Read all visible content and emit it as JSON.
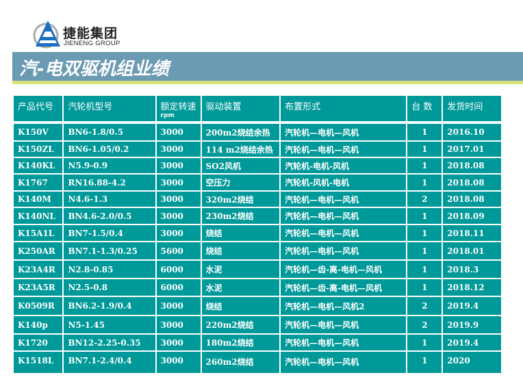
{
  "logo": {
    "cn": "捷能集团",
    "en": "JIENENG GROUP"
  },
  "title": "汽-电双驱机组业绩",
  "colors": {
    "table_bg": "#009999",
    "title_bar": "#6b9ab3",
    "stripe": "#d6e27a"
  },
  "headers": [
    "产品代号",
    "汽轮机型号",
    "额定转速",
    "驱动装置",
    "布置形式",
    "台 数",
    "发货时间"
  ],
  "speed_unit": "rpm",
  "rows": [
    [
      "K150V",
      "BN6-1.8/0.5",
      "3000",
      "200m2烧结余热",
      "汽轮机—电机—风机",
      "1",
      "2016.10"
    ],
    [
      "K150ZL",
      "BN6-1.05/0.2",
      "3000",
      "114 m2烧结余热",
      "汽轮机—电机—风机",
      "1",
      "2017.01"
    ],
    [
      "K140KL",
      "N5.9-0.9",
      "3000",
      "SO2风机",
      "汽轮机-电机-风机",
      "1",
      "2018.08"
    ],
    [
      "K1767",
      "RN16.88-4.2",
      "3000",
      "空压力",
      "汽轮机-风机-电机",
      "1",
      "2018.08"
    ],
    [
      "K140M",
      "N4.6-1.3",
      "3000",
      "320m2烧结",
      "汽轮机—电机—风机",
      "2",
      "2018.08"
    ],
    [
      "K140NL",
      "BN4.6-2.0/0.5",
      "3000",
      "230m2烧结",
      "汽轮机—电机—风机",
      "1",
      "2018.09"
    ],
    [
      "K15A1L",
      "BN7-1.5/0.4",
      "3000",
      "烧结",
      "汽轮机—电机—风机",
      "1",
      "2018.11"
    ],
    [
      "K250AR",
      "BN7.1-1.3/0.25",
      "5600",
      "烧结",
      "汽轮机—电机—风机",
      "1",
      "2018.01"
    ],
    [
      "K23A4R",
      "N2.8-0.85",
      "6000",
      "水泥",
      "汽轮机—齿-离-电机—风机",
      "1",
      "2018.3"
    ],
    [
      "K23A5R",
      "N2.5-0.8",
      "6000",
      "水泥",
      "汽轮机—齿-离-电机—风机",
      "1",
      "2018.12"
    ],
    [
      "K0509R",
      "BN6.2-1.9/0.4",
      "3000",
      "烧结",
      "汽轮机—电机—风机2",
      "2",
      "2019.4"
    ],
    [
      "K140p",
      "N5-1.45",
      "3000",
      "220m2烧结",
      "汽轮机—电机—风机",
      "2",
      "2019.9"
    ],
    [
      "K1720",
      "BN12-2.25-0.35",
      "3000",
      "180m2烧结",
      "汽轮机—电机—风机",
      "1",
      "2019.4"
    ],
    [
      "K1518L",
      "BN7.1-2.4/0.4",
      "3000",
      "260m2烧结",
      "汽轮机—电机—风机",
      "1",
      "2020"
    ]
  ]
}
